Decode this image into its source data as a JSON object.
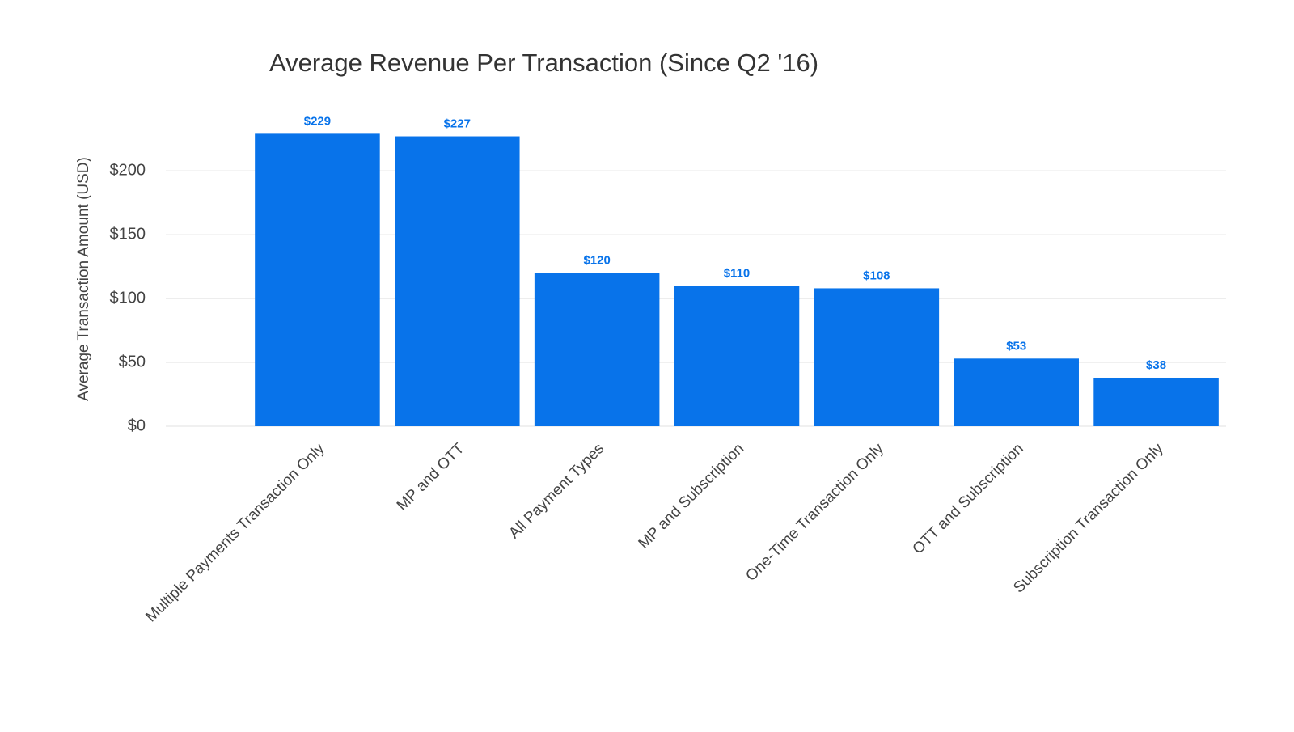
{
  "chart_data": {
    "type": "bar",
    "title": "Average Revenue Per Transaction (Since Q2 '16)",
    "y_label": "Average Transaction Amount (USD)",
    "categories": [
      "Multiple Payments Transaction Only",
      "MP and OTT",
      "All Payment Types",
      "MP and Subscription",
      "One-Time Transaction Only",
      "OTT and Subscription",
      "Subscription Transaction Only"
    ],
    "values": [
      229,
      227,
      120,
      110,
      108,
      53,
      38
    ],
    "value_labels": [
      "$229",
      "$227",
      "$120",
      "$110",
      "$108",
      "$53",
      "$38"
    ],
    "color": "#0873ea",
    "ylim": [
      0,
      240
    ],
    "yticks": [
      {
        "value": 0,
        "label": "$0"
      },
      {
        "value": 50,
        "label": "$50"
      },
      {
        "value": 100,
        "label": "$100"
      },
      {
        "value": 150,
        "label": "$150"
      },
      {
        "value": 200,
        "label": "$200"
      }
    ],
    "grid": true
  }
}
